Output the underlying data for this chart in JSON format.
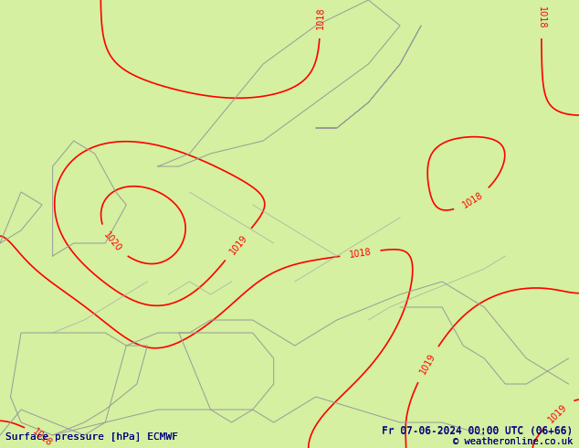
{
  "title_left": "Surface pressure [hPa] ECMWF",
  "title_right": "Fr 07-06-2024 00:00 UTC (06+66)",
  "copyright": "© weatheronline.co.uk",
  "bg_color": "#ccee99",
  "land_color": "#ccee99",
  "sea_color": "#ccee99",
  "contour_color": "#ff0000",
  "border_color": "#aaaaaa",
  "text_color": "#000080",
  "pressure_min": 1015,
  "pressure_max": 1021,
  "pressure_step": 1,
  "figsize": [
    6.34,
    4.9
  ],
  "dpi": 100
}
